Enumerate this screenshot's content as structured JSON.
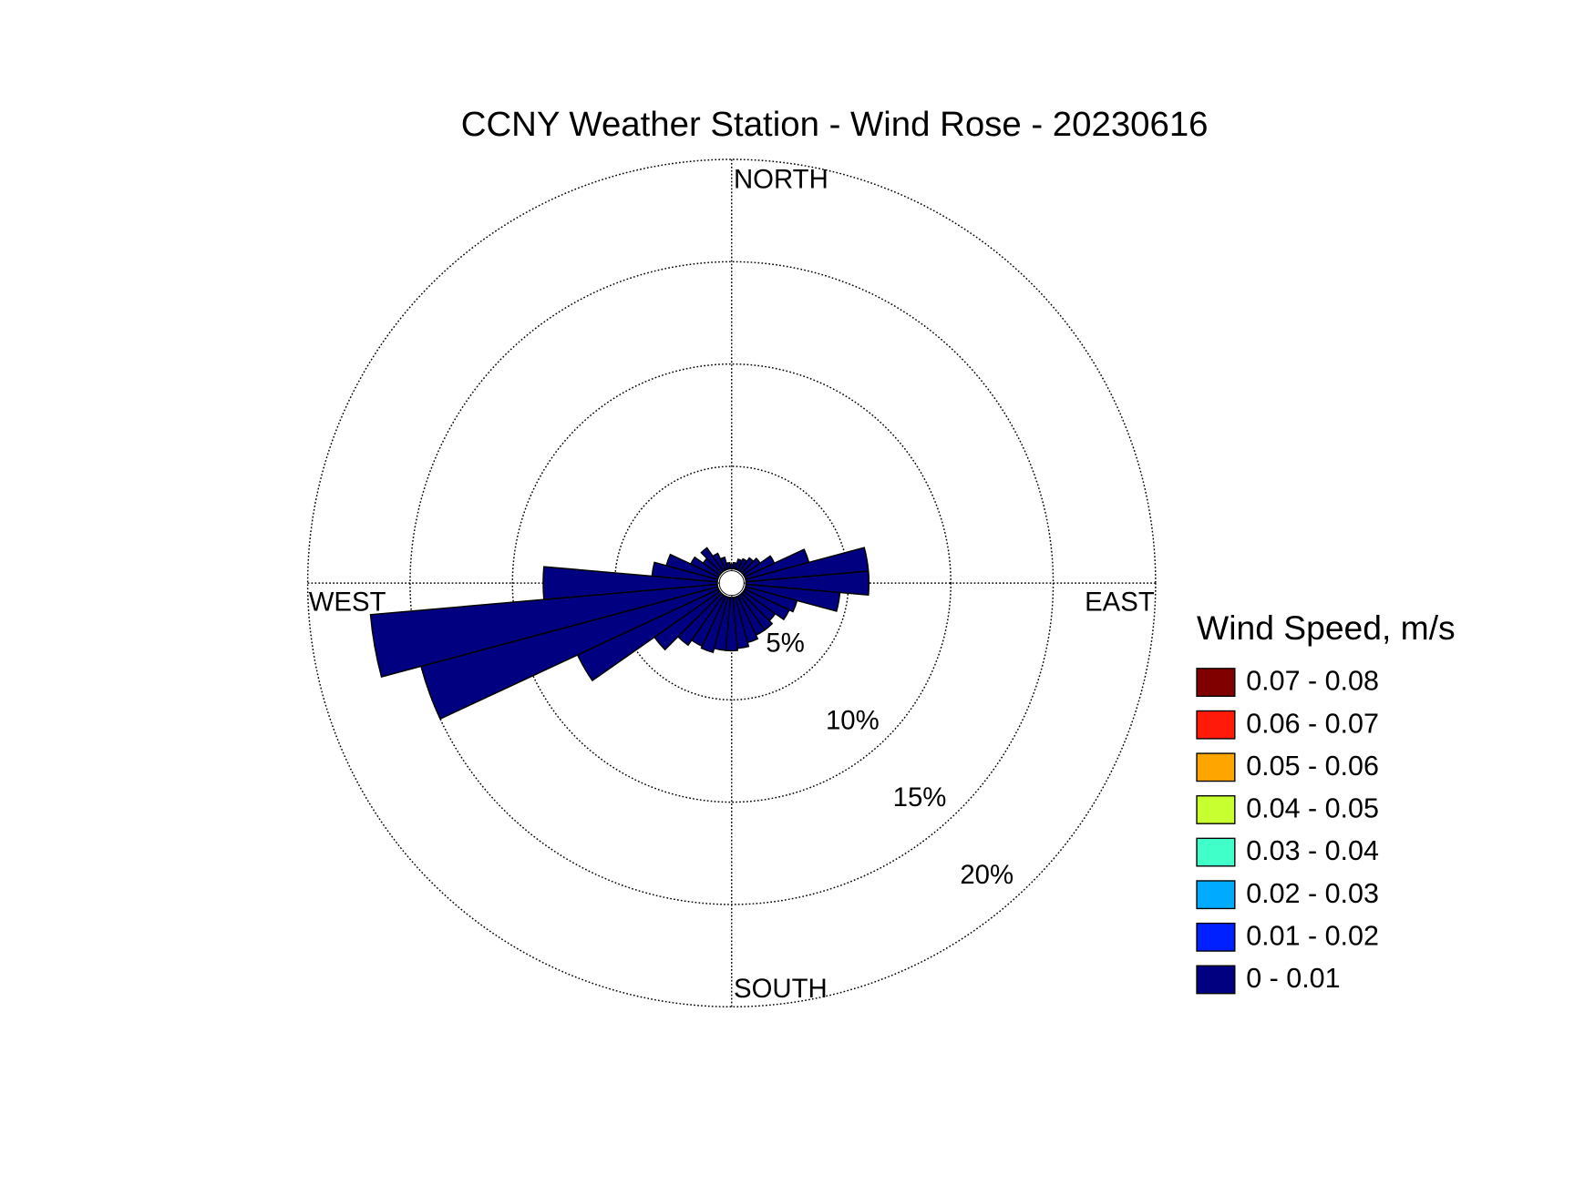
{
  "chart_data": {
    "type": "windrose",
    "title": "CCNY Weather Station - Wind Rose - 20230616",
    "direction_labels": {
      "north": "NORTH",
      "east": "EAST",
      "south": "SOUTH",
      "west": "WEST"
    },
    "directions": [
      0,
      10,
      20,
      30,
      40,
      50,
      60,
      70,
      80,
      90,
      100,
      110,
      120,
      130,
      140,
      150,
      160,
      170,
      180,
      190,
      200,
      210,
      220,
      230,
      240,
      250,
      260,
      270,
      280,
      290,
      300,
      310,
      320,
      330,
      340,
      350
    ],
    "rlim": [
      0,
      20
    ],
    "rticks": [
      {
        "value": 5,
        "label": "5%"
      },
      {
        "value": 10,
        "label": "10%"
      },
      {
        "value": 15,
        "label": "15%"
      },
      {
        "value": 20,
        "label": "20%"
      }
    ],
    "legend_title": "Wind Speed, m/s",
    "series": [
      {
        "name": "0 - 0.01",
        "color": "#000080",
        "values": [
          0.2,
          0.3,
          0.5,
          0.6,
          0.8,
          1.0,
          1.6,
          3.2,
          6.0,
          6.0,
          4.6,
          2.6,
          2.4,
          1.9,
          2.1,
          2.1,
          2.3,
          2.5,
          2.6,
          2.6,
          2.8,
          2.7,
          3.0,
          3.9,
          7.6,
          15.0,
          17.0,
          8.5,
          3.2,
          2.6,
          1.5,
          1.0,
          1.4,
          0.9,
          0.6,
          0.3
        ]
      },
      {
        "name": "0.01 - 0.02",
        "color": "#0020ff",
        "values": [
          0,
          0,
          0,
          0,
          0,
          0,
          0,
          0,
          0,
          0,
          0,
          0,
          0,
          0,
          0,
          0,
          0,
          0,
          0,
          0,
          0,
          0,
          0,
          0,
          0,
          0,
          0,
          0,
          0,
          0,
          0,
          0,
          0,
          0,
          0,
          0
        ]
      },
      {
        "name": "0.02 - 0.03",
        "color": "#00aaff",
        "values": [
          0,
          0,
          0,
          0,
          0,
          0,
          0,
          0,
          0,
          0,
          0,
          0,
          0,
          0,
          0,
          0,
          0,
          0,
          0,
          0,
          0,
          0,
          0,
          0,
          0,
          0,
          0,
          0,
          0,
          0,
          0,
          0,
          0,
          0,
          0,
          0
        ]
      },
      {
        "name": "0.03 - 0.04",
        "color": "#40ffc8",
        "values": [
          0,
          0,
          0,
          0,
          0,
          0,
          0,
          0,
          0,
          0,
          0,
          0,
          0,
          0,
          0,
          0,
          0,
          0,
          0,
          0,
          0,
          0,
          0,
          0,
          0,
          0,
          0,
          0,
          0,
          0,
          0,
          0,
          0,
          0,
          0,
          0
        ]
      },
      {
        "name": "0.04 - 0.05",
        "color": "#c8ff30",
        "values": [
          0,
          0,
          0,
          0,
          0,
          0,
          0,
          0,
          0,
          0,
          0,
          0,
          0,
          0,
          0,
          0,
          0,
          0,
          0,
          0,
          0,
          0,
          0,
          0,
          0,
          0,
          0,
          0,
          0,
          0,
          0,
          0,
          0,
          0,
          0,
          0
        ]
      },
      {
        "name": "0.05 - 0.06",
        "color": "#ffa500",
        "values": [
          0,
          0,
          0,
          0,
          0,
          0,
          0,
          0,
          0,
          0,
          0,
          0,
          0,
          0,
          0,
          0,
          0,
          0,
          0,
          0,
          0,
          0,
          0,
          0,
          0,
          0,
          0,
          0,
          0,
          0,
          0,
          0,
          0,
          0,
          0,
          0
        ]
      },
      {
        "name": "0.06 - 0.07",
        "color": "#ff1a0a",
        "values": [
          0,
          0,
          0,
          0,
          0,
          0,
          0,
          0,
          0,
          0,
          0,
          0,
          0,
          0,
          0,
          0,
          0,
          0,
          0,
          0,
          0,
          0,
          0,
          0,
          0,
          0,
          0,
          0,
          0,
          0,
          0,
          0,
          0,
          0,
          0,
          0
        ]
      },
      {
        "name": "0.07 - 0.08",
        "color": "#800000",
        "values": [
          0,
          0,
          0,
          0,
          0,
          0,
          0,
          0,
          0,
          0,
          0,
          0,
          0,
          0,
          0,
          0,
          0,
          0,
          0,
          0,
          0,
          0,
          0,
          0,
          0,
          0,
          0,
          0,
          0,
          0,
          0,
          0,
          0,
          0,
          0,
          0
        ]
      }
    ]
  }
}
